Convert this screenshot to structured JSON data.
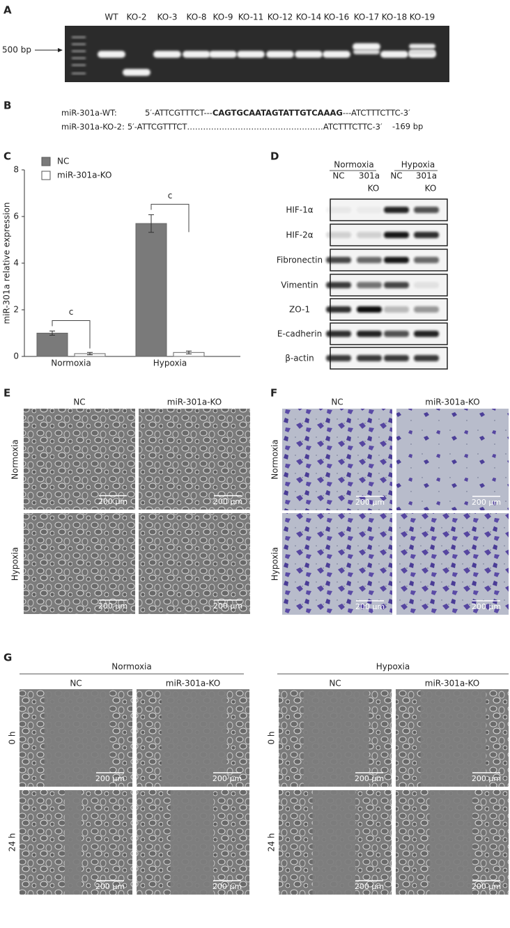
{
  "panels": {
    "a": {
      "label": "A",
      "lanes": [
        "WT",
        "KO-2",
        "KO-3",
        "KO-8",
        "KO-9",
        "KO-11",
        "KO-12",
        "KO-14",
        "KO-16",
        "KO-17",
        "KO-18",
        "KO-19"
      ],
      "marker": "500 bp"
    },
    "b": {
      "label": "B",
      "wt": {
        "name": "miR-301a-WT:",
        "left": "5′-ATTCGTTTCT---",
        "deleted": "CAGTGCAATAGTATTGTCAAAG",
        "right": "---ATCTTTCTTC-3′"
      },
      "ko": {
        "name": "miR-301a-KO-2:",
        "left": "5′-ATTCGTTTCT",
        "gap": "……………………………………………",
        "right": "ATCTTTCTTC-3′",
        "note": "-169 bp"
      }
    },
    "d": {
      "label": "D",
      "conditions": [
        "Normoxia",
        "Hypoxia"
      ],
      "lanes": [
        [
          "NC"
        ],
        [
          "301a",
          "KO"
        ],
        [
          "NC"
        ],
        [
          "301a",
          "KO"
        ]
      ],
      "proteins": [
        "HIF-1α",
        "HIF-2α",
        "Fibronectin",
        "Vimentin",
        "ZO-1",
        "E-cadherin",
        "β-actin"
      ]
    },
    "e": {
      "label": "E",
      "columns": [
        "NC",
        "miR-301a-KO"
      ],
      "rows": [
        "Normoxia",
        "Hypoxia"
      ],
      "scale": "200 μm"
    },
    "f": {
      "label": "F",
      "columns": [
        "NC",
        "miR-301a-KO"
      ],
      "rows": [
        "Normoxia",
        "Hypoxia"
      ],
      "scale": "200 μm"
    },
    "g": {
      "label": "G",
      "conditions": [
        "Normoxia",
        "Hypoxia"
      ],
      "columns": [
        "NC",
        "miR-301a-KO"
      ],
      "rows": [
        "0 h",
        "24 h"
      ],
      "scale": "200 μm"
    }
  },
  "chart_data": {
    "type": "bar",
    "label": "C",
    "ylabel": "miR-301a relative expression",
    "categories": [
      "Normoxia",
      "Hypoxia"
    ],
    "series": [
      {
        "name": "NC",
        "color": "#7a7a7a",
        "values": [
          1.0,
          5.7
        ],
        "errors": [
          0.09,
          0.38
        ]
      },
      {
        "name": "miR-301a-KO",
        "color": "#ffffff",
        "values": [
          0.12,
          0.17
        ],
        "errors": [
          0.05,
          0.06
        ]
      }
    ],
    "ylim": [
      0,
      8
    ],
    "yticks": [
      0,
      2,
      4,
      6,
      8
    ],
    "annotations": [
      "c",
      "c"
    ]
  }
}
